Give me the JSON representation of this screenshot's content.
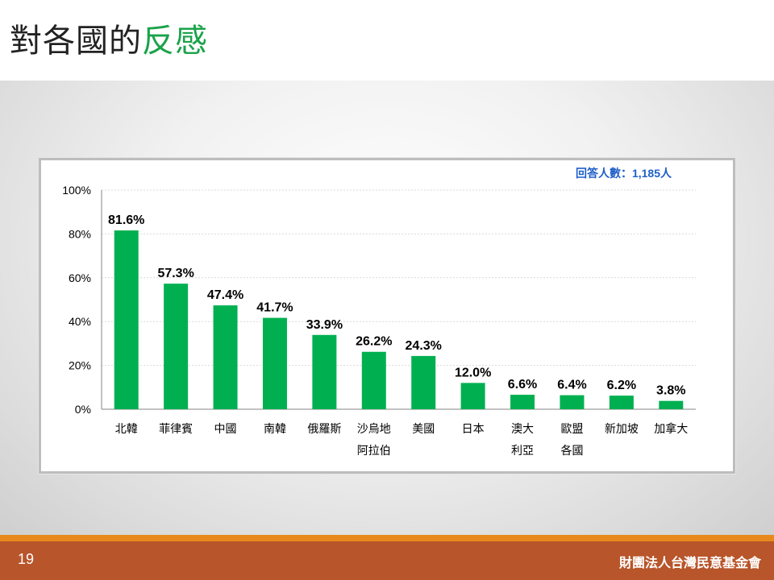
{
  "slide": {
    "title_main": "對各國的",
    "title_accent": "反感",
    "page_number": "19",
    "organization": "財團法人台灣民意基金會"
  },
  "colors": {
    "bar": "#00b050",
    "title_accent": "#1aa34a",
    "respondents_text": "#1f5fc8",
    "footer": "#b8552a",
    "footer_stripe": "#e8891c"
  },
  "chart_data": {
    "type": "bar",
    "title": "",
    "xlabel": "",
    "ylabel": "",
    "annotation": "回答人數：1,185人",
    "ylim": [
      0,
      100
    ],
    "yticks": [
      0,
      20,
      40,
      60,
      80,
      100
    ],
    "ytick_labels": [
      "0%",
      "20%",
      "40%",
      "60%",
      "80%",
      "100%"
    ],
    "grid": true,
    "legend": "none",
    "categories": [
      [
        "北韓"
      ],
      [
        "菲律賓"
      ],
      [
        "中國"
      ],
      [
        "南韓"
      ],
      [
        "俄羅斯"
      ],
      [
        "沙烏地",
        "阿拉伯"
      ],
      [
        "美國"
      ],
      [
        "日本"
      ],
      [
        "澳大",
        "利亞"
      ],
      [
        "歐盟",
        "各國"
      ],
      [
        "新加坡"
      ],
      [
        "加拿大"
      ]
    ],
    "values": [
      81.6,
      57.3,
      47.4,
      41.7,
      33.9,
      26.2,
      24.3,
      12.0,
      6.6,
      6.4,
      6.2,
      3.8
    ],
    "value_labels": [
      "81.6%",
      "57.3%",
      "47.4%",
      "41.7%",
      "33.9%",
      "26.2%",
      "24.3%",
      "12.0%",
      "6.6%",
      "6.4%",
      "6.2%",
      "3.8%"
    ]
  }
}
